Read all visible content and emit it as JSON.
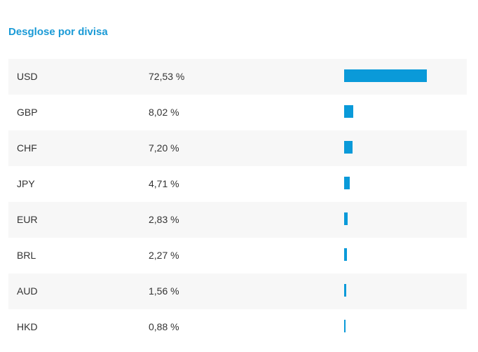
{
  "section": {
    "title": "Desglose por divisa"
  },
  "colors": {
    "accent": "#1a9ad6",
    "bar": "#0a9ad9",
    "row_shade": "#f7f7f7",
    "text": "#333333"
  },
  "rows": [
    {
      "currency": "USD",
      "value_label": "72,53 %",
      "value": 72.53
    },
    {
      "currency": "GBP",
      "value_label": "8,02 %",
      "value": 8.02
    },
    {
      "currency": "CHF",
      "value_label": "7,20 %",
      "value": 7.2
    },
    {
      "currency": "JPY",
      "value_label": "4,71 %",
      "value": 4.71
    },
    {
      "currency": "EUR",
      "value_label": "2,83 %",
      "value": 2.83
    },
    {
      "currency": "BRL",
      "value_label": "2,27 %",
      "value": 2.27
    },
    {
      "currency": "AUD",
      "value_label": "1,56 %",
      "value": 1.56
    },
    {
      "currency": "HKD",
      "value_label": "0,88 %",
      "value": 0.88
    }
  ]
}
